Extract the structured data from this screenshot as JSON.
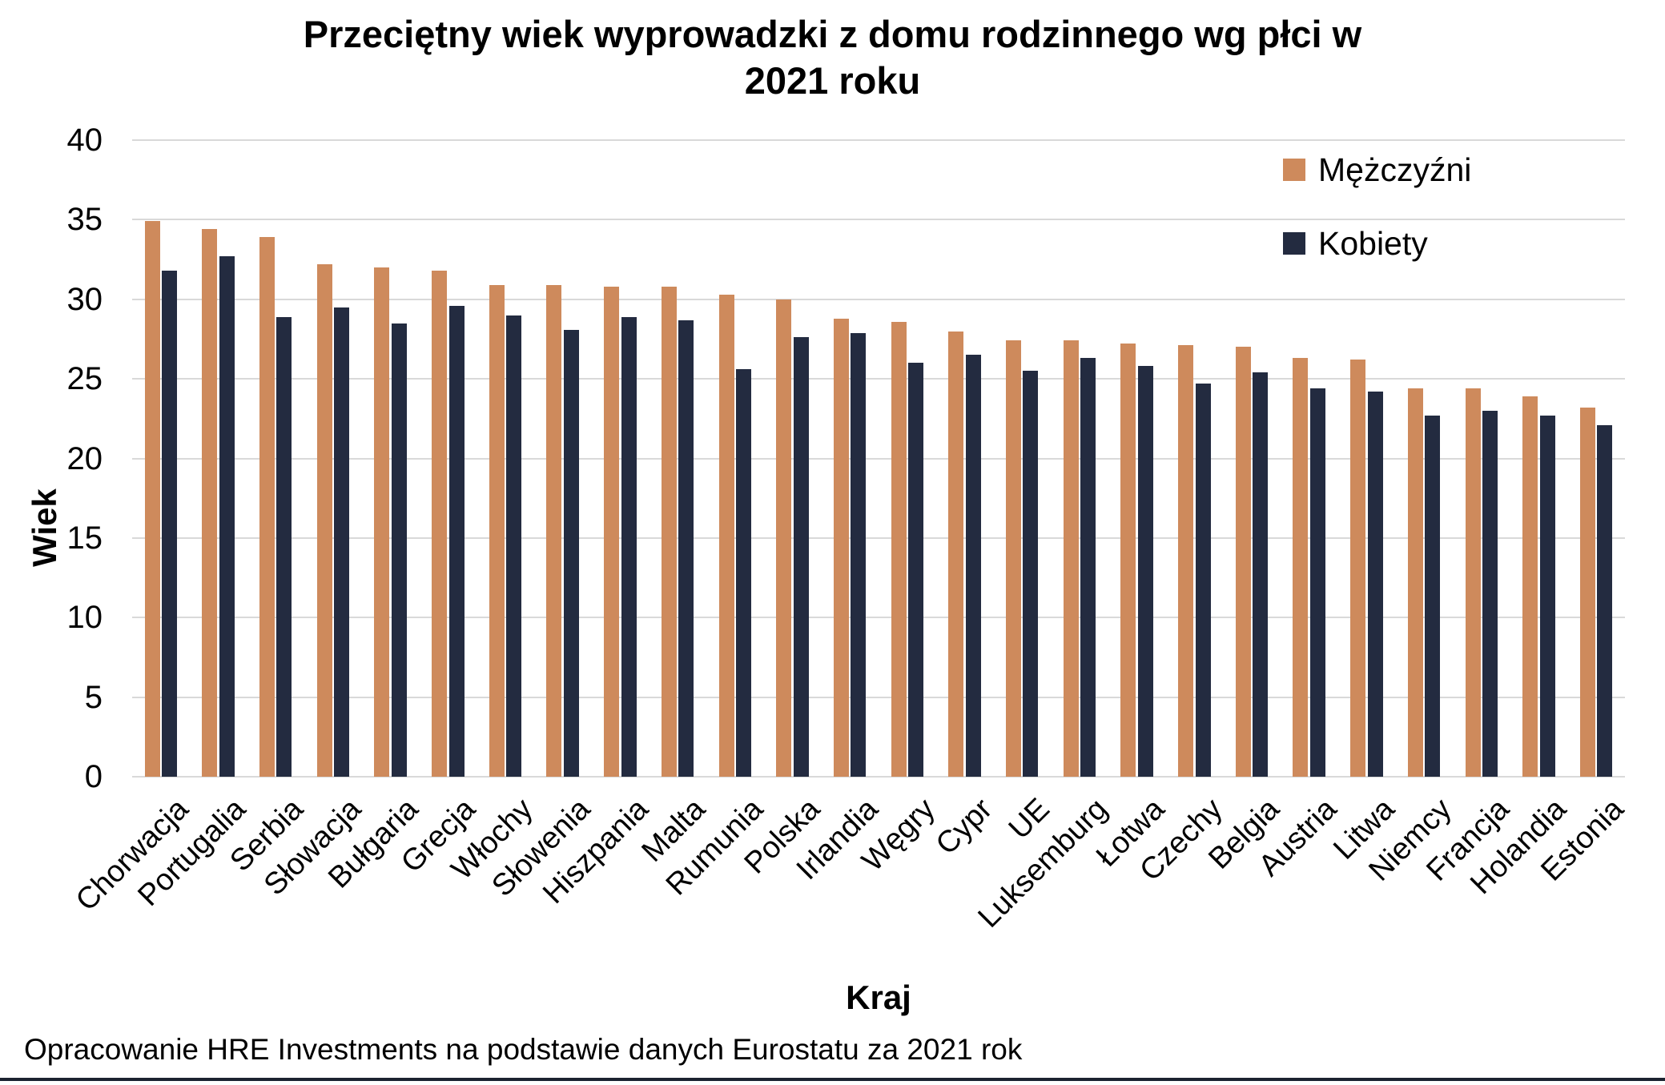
{
  "title_lines": [
    "Przeciętny wiek wyprowadzki z domu rodzinnego wg płci w",
    "2021 roku"
  ],
  "footer": {
    "source_note": "Opracowanie HRE Investments na podstawie danych Eurostatu za 2021 rok"
  },
  "colors": {
    "men_series": "#CE8A5C",
    "women_series": "#232B40",
    "gridline": "#D9D9D9",
    "bottom_bar": "#1B2230",
    "text": "#000000",
    "background": "#FFFFFF"
  },
  "chart_data": {
    "type": "bar",
    "title": "Przeciętny wiek wyprowadzki z domu rodzinnego wg płci w 2021 roku",
    "xlabel": "Kraj",
    "ylabel": "Wiek",
    "ylim": [
      0,
      40
    ],
    "ytick_step": 5,
    "yticks": [
      0,
      5,
      10,
      15,
      20,
      25,
      30,
      35,
      40
    ],
    "grid": true,
    "legend_position": "top-right",
    "categories": [
      "Chorwacja",
      "Portugalia",
      "Serbia",
      "Słowacja",
      "Bułgaria",
      "Grecja",
      "Włochy",
      "Słowenia",
      "Hiszpania",
      "Malta",
      "Rumunia",
      "Polska",
      "Irlandia",
      "Węgry",
      "Cypr",
      "UE",
      "Luksemburg",
      "Łotwa",
      "Czechy",
      "Belgia",
      "Austria",
      "Litwa",
      "Niemcy",
      "Francja",
      "Holandia",
      "Estonia"
    ],
    "series": [
      {
        "name": "Mężczyźni",
        "color": "#CE8A5C",
        "values": [
          34.9,
          34.4,
          33.9,
          32.2,
          32.0,
          31.8,
          30.9,
          30.9,
          30.8,
          30.8,
          30.3,
          30.0,
          28.8,
          28.6,
          28.0,
          27.4,
          27.4,
          27.2,
          27.1,
          27.0,
          26.3,
          26.2,
          24.4,
          24.4,
          23.9,
          23.2
        ]
      },
      {
        "name": "Kobiety",
        "color": "#232B40",
        "values": [
          31.8,
          32.7,
          28.9,
          29.5,
          28.5,
          29.6,
          29.0,
          28.1,
          28.9,
          28.7,
          25.6,
          27.6,
          27.9,
          26.0,
          26.5,
          25.5,
          26.3,
          25.8,
          24.7,
          25.4,
          24.4,
          24.2,
          22.7,
          23.0,
          22.7,
          22.1
        ]
      }
    ]
  }
}
